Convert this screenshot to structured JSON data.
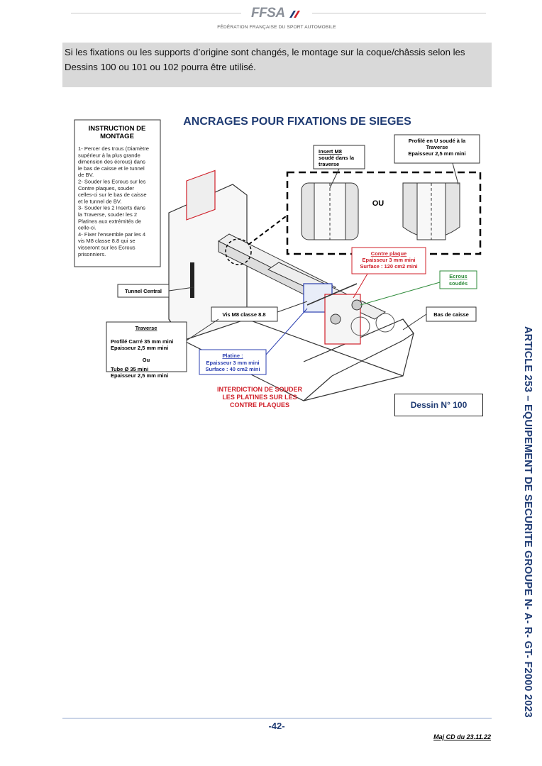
{
  "header": {
    "logo_text": "FFSA",
    "federation": "FÉDÉRATION FRANÇAISE DU SPORT AUTOMOBILE"
  },
  "notice": {
    "text": "Si les fixations ou les supports d’origine sont changés, le montage sur la coque/châssis selon les Dessins 100 ou 101 ou 102 pourra être utilisé."
  },
  "figure": {
    "title": "ANCRAGES POUR FIXATIONS DE SIEGES",
    "instruction": {
      "title_1": "INSTRUCTION DE",
      "title_2": "MONTAGE",
      "lines": [
        "1- Percer des trous (Diamètre",
        "supérieur à la plus grande",
        "dimension des écrous) dans",
        "le bas de caisse et le tunnel",
        "de BV.",
        "2- Souder les Ecrous sur les",
        "Contre plaques, souder",
        "celles-ci sur le bas de caisse",
        "et le tunnel de BV.",
        "3- Souder les 2 Inserts dans",
        "la Traverse, souder les 2",
        "Platines aux extrémités de",
        "celle-ci.",
        "4- Fixer l'ensemble par les 4",
        "vis M8 classe 8.8 qui se",
        "visseront sur les Ecrous",
        "prisonniers."
      ]
    },
    "insert": {
      "line1": "Insert M8",
      "line2": "soudé dans la",
      "line3": "traverse"
    },
    "profile_u": {
      "line1": "Profilé en U soudé à la",
      "line2": "Traverse",
      "line3": "Epaisseur 2,5 mm mini"
    },
    "ou": "OU",
    "contre_plaque": {
      "line1": "Contre plaque",
      "line2": "Epaisseur 3 mm mini",
      "line3": "Surface : 120 cm2 mini"
    },
    "ecrous": {
      "line1": "Ecrous",
      "line2": "soudés"
    },
    "tunnel": "Tunnel Central",
    "vis": "Vis M8 classe 8.8",
    "bas_caisse": "Bas de caisse",
    "traverse": {
      "title": "Traverse",
      "line1": "Profilé Carré 35 mm mini",
      "line2": "Epaisseur 2,5 mm mini",
      "ou": "Ou",
      "line3": "Tube Ø 35 mini",
      "line4": "Epaisseur 2,5 mm mini"
    },
    "platine": {
      "line1": "Platine :",
      "line2": "Epaisseur 3 mm mini",
      "line3": "Surface : 40 cm2 mini"
    },
    "interdiction": {
      "line1": "INTERDICTION DE SOUDER",
      "line2": "LES PLATINES SUR LES",
      "line3": "CONTRE PLAQUES"
    }
  },
  "dessin": "Dessin N° 100",
  "side_title": "ARTICLE 253 – EQUIPEMENT DE SECURITE GROUPE N- A- R- GT- F2000 2023",
  "footer": {
    "page": "-42-",
    "maj": "Maj CD du 23.11.22"
  },
  "colors": {
    "accent_blue": "#1f3b73",
    "accent_red": "#d0202a",
    "notice_bg": "#d9d9d9"
  }
}
